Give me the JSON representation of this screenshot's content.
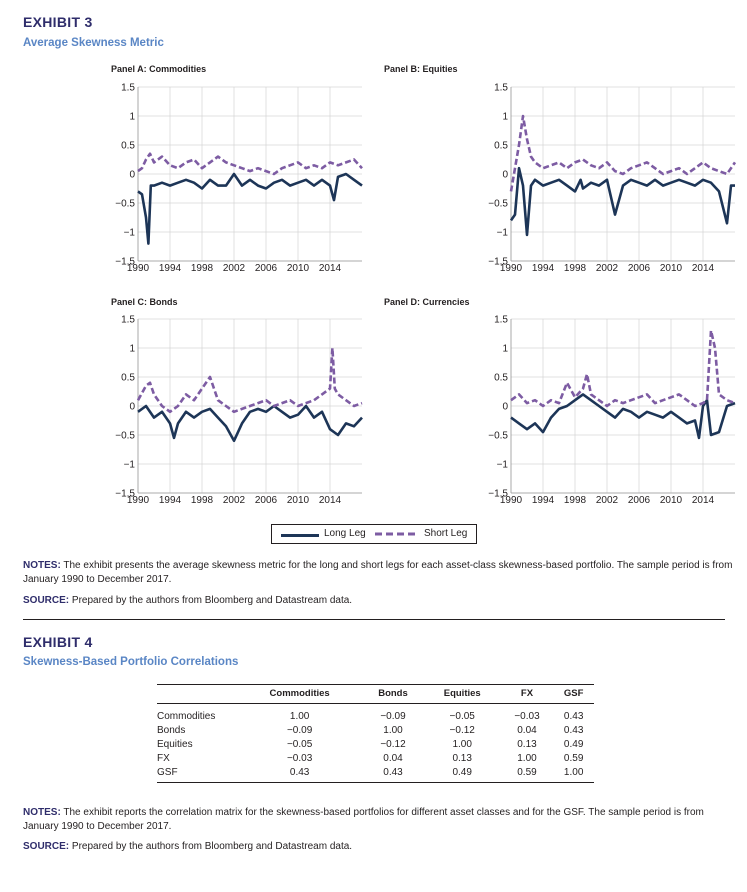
{
  "exhibit3": {
    "label": "EXHIBIT 3",
    "title": "Average Skewness Metric",
    "colors": {
      "long_leg": "#1d3557",
      "short_leg": "#7d5ca3"
    },
    "legend": {
      "long": "Long Leg",
      "short": "Short Leg"
    },
    "notes_label": "NOTES:",
    "notes": "The exhibit presents the average skewness metric for the long and short legs for each asset-class skewness-based portfolio. The sample period is from January 1990 to December 2017.",
    "source_label": "SOURCE:",
    "source": "Prepared by the authors from Bloomberg and Datastream data."
  },
  "chart_data": [
    {
      "type": "line",
      "title": "Panel A: Commodities",
      "xlim": [
        1990,
        2018
      ],
      "ylim": [
        -1.5,
        1.5
      ],
      "yticks": [
        "1.5",
        "1",
        "0.5",
        "0",
        "−0.5",
        "−1",
        "−1.5"
      ],
      "xticks": [
        "1990",
        "1994",
        "1998",
        "2002",
        "2006",
        "2010",
        "2014"
      ],
      "grid": true,
      "series": [
        {
          "name": "Long Leg",
          "x": [
            1990,
            1990.5,
            1991,
            1991.3,
            1991.6,
            1992,
            1993,
            1994,
            1995,
            1996,
            1997,
            1998,
            1999,
            2000,
            2001,
            2002,
            2003,
            2004,
            2005,
            2006,
            2007,
            2008,
            2009,
            2010,
            2011,
            2012,
            2013,
            2014,
            2014.5,
            2015,
            2016,
            2017,
            2018
          ],
          "y": [
            -0.3,
            -0.35,
            -0.75,
            -1.2,
            -0.2,
            -0.2,
            -0.15,
            -0.2,
            -0.15,
            -0.1,
            -0.15,
            -0.25,
            -0.1,
            -0.2,
            -0.2,
            0.0,
            -0.2,
            -0.1,
            -0.2,
            -0.25,
            -0.15,
            -0.1,
            -0.2,
            -0.15,
            -0.1,
            -0.2,
            -0.1,
            -0.2,
            -0.45,
            -0.05,
            0.0,
            -0.1,
            -0.2
          ]
        },
        {
          "name": "Short Leg",
          "x": [
            1990,
            1990.5,
            1991,
            1991.5,
            1992,
            1993,
            1994,
            1995,
            1996,
            1997,
            1998,
            1999,
            2000,
            2001,
            2002,
            2003,
            2004,
            2005,
            2006,
            2007,
            2008,
            2009,
            2010,
            2011,
            2012,
            2013,
            2014,
            2015,
            2016,
            2017,
            2018
          ],
          "y": [
            0.05,
            0.1,
            0.25,
            0.35,
            0.2,
            0.3,
            0.15,
            0.1,
            0.2,
            0.25,
            0.1,
            0.2,
            0.3,
            0.2,
            0.15,
            0.1,
            0.05,
            0.1,
            0.05,
            0.0,
            0.1,
            0.15,
            0.2,
            0.1,
            0.15,
            0.1,
            0.2,
            0.15,
            0.2,
            0.25,
            0.1
          ]
        }
      ]
    },
    {
      "type": "line",
      "title": "Panel B: Equities",
      "xlim": [
        1990,
        2018
      ],
      "ylim": [
        -1.5,
        1.5
      ],
      "yticks": [
        "1.5",
        "1",
        "0.5",
        "0",
        "−0.5",
        "−1",
        "−1.5"
      ],
      "xticks": [
        "1990",
        "1994",
        "1998",
        "2002",
        "2006",
        "2010",
        "2014"
      ],
      "grid": true,
      "series": [
        {
          "name": "Long Leg",
          "x": [
            1990,
            1990.5,
            1991,
            1991.5,
            1992,
            1992.5,
            1993,
            1994,
            1995,
            1996,
            1997,
            1998,
            1998.7,
            1999,
            2000,
            2001,
            2002,
            2003,
            2004,
            2005,
            2006,
            2007,
            2008,
            2009,
            2010,
            2011,
            2012,
            2013,
            2014,
            2015,
            2016,
            2017,
            2017.5,
            2018
          ],
          "y": [
            -0.8,
            -0.7,
            0.1,
            -0.2,
            -1.05,
            -0.2,
            -0.1,
            -0.2,
            -0.15,
            -0.1,
            -0.2,
            -0.3,
            -0.1,
            -0.25,
            -0.15,
            -0.2,
            -0.1,
            -0.7,
            -0.2,
            -0.1,
            -0.15,
            -0.2,
            -0.1,
            -0.2,
            -0.15,
            -0.1,
            -0.15,
            -0.2,
            -0.1,
            -0.15,
            -0.3,
            -0.85,
            -0.2,
            -0.2
          ]
        },
        {
          "name": "Short Leg",
          "x": [
            1990,
            1990.5,
            1991,
            1991.5,
            1992,
            1992.5,
            1993,
            1994,
            1995,
            1996,
            1997,
            1998,
            1999,
            2000,
            2001,
            2002,
            2003,
            2004,
            2005,
            2006,
            2007,
            2008,
            2009,
            2010,
            2011,
            2012,
            2013,
            2014,
            2015,
            2016,
            2017,
            2018
          ],
          "y": [
            -0.3,
            0.1,
            0.5,
            1.0,
            0.6,
            0.3,
            0.2,
            0.1,
            0.15,
            0.2,
            0.1,
            0.2,
            0.25,
            0.15,
            0.1,
            0.2,
            0.05,
            0.0,
            0.1,
            0.15,
            0.2,
            0.1,
            0.0,
            0.05,
            0.1,
            0.0,
            0.1,
            0.2,
            0.1,
            0.05,
            0.0,
            0.2
          ]
        }
      ]
    },
    {
      "type": "line",
      "title": "Panel C: Bonds",
      "xlim": [
        1990,
        2018
      ],
      "ylim": [
        -1.5,
        1.5
      ],
      "yticks": [
        "1.5",
        "1",
        "0.5",
        "0",
        "−0.5",
        "−1",
        "−1.5"
      ],
      "xticks": [
        "1990",
        "1994",
        "1998",
        "2002",
        "2006",
        "2010",
        "2014"
      ],
      "grid": true,
      "series": [
        {
          "name": "Long Leg",
          "x": [
            1990,
            1991,
            1992,
            1993,
            1994,
            1994.5,
            1995,
            1996,
            1997,
            1998,
            1999,
            2000,
            2001,
            2002,
            2003,
            2004,
            2005,
            2006,
            2007,
            2008,
            2009,
            2010,
            2011,
            2012,
            2013,
            2014,
            2015,
            2016,
            2017,
            2018
          ],
          "y": [
            -0.1,
            0.0,
            -0.2,
            -0.1,
            -0.3,
            -0.55,
            -0.3,
            -0.1,
            -0.2,
            -0.1,
            -0.05,
            -0.2,
            -0.35,
            -0.6,
            -0.3,
            -0.1,
            -0.05,
            -0.1,
            0.0,
            -0.1,
            -0.2,
            -0.15,
            0.0,
            -0.2,
            -0.1,
            -0.4,
            -0.5,
            -0.3,
            -0.35,
            -0.2
          ]
        },
        {
          "name": "Short Leg",
          "x": [
            1990,
            1991,
            1991.5,
            1992,
            1993,
            1994,
            1995,
            1996,
            1997,
            1998,
            1999,
            2000,
            2001,
            2002,
            2003,
            2004,
            2005,
            2006,
            2007,
            2008,
            2009,
            2010,
            2011,
            2012,
            2013,
            2014,
            2014.3,
            2014.6,
            2015,
            2016,
            2017,
            2018
          ],
          "y": [
            0.1,
            0.35,
            0.4,
            0.2,
            0.0,
            -0.1,
            0.0,
            0.2,
            0.1,
            0.3,
            0.5,
            0.1,
            0.0,
            -0.1,
            -0.05,
            0.0,
            0.05,
            0.1,
            0.0,
            0.05,
            0.1,
            0.0,
            0.05,
            0.1,
            0.2,
            0.3,
            1.0,
            0.3,
            0.2,
            0.1,
            0.0,
            0.05
          ]
        }
      ]
    },
    {
      "type": "line",
      "title": "Panel D: Currencies",
      "xlim": [
        1990,
        2018
      ],
      "ylim": [
        -1.5,
        1.5
      ],
      "yticks": [
        "1.5",
        "1",
        "0.5",
        "0",
        "−0.5",
        "−1",
        "−1.5"
      ],
      "xticks": [
        "1990",
        "1994",
        "1998",
        "2002",
        "2006",
        "2010",
        "2014"
      ],
      "grid": true,
      "series": [
        {
          "name": "Long Leg",
          "x": [
            1990,
            1991,
            1992,
            1993,
            1994,
            1995,
            1996,
            1997,
            1998,
            1999,
            2000,
            2001,
            2002,
            2003,
            2004,
            2005,
            2006,
            2007,
            2008,
            2009,
            2010,
            2011,
            2012,
            2013,
            2013.5,
            2014,
            2014.5,
            2015,
            2016,
            2017,
            2018
          ],
          "y": [
            -0.2,
            -0.3,
            -0.4,
            -0.3,
            -0.45,
            -0.2,
            -0.05,
            0.0,
            0.1,
            0.2,
            0.1,
            0.0,
            -0.1,
            -0.2,
            -0.05,
            -0.1,
            -0.2,
            -0.1,
            -0.15,
            -0.2,
            -0.1,
            -0.2,
            -0.3,
            -0.25,
            -0.55,
            0.0,
            0.1,
            -0.5,
            -0.45,
            0.0,
            0.05
          ]
        },
        {
          "name": "Short Leg",
          "x": [
            1990,
            1991,
            1992,
            1993,
            1994,
            1995,
            1996,
            1997,
            1998,
            1999,
            1999.5,
            2000,
            2001,
            2002,
            2003,
            2004,
            2005,
            2006,
            2007,
            2008,
            2009,
            2010,
            2011,
            2012,
            2013,
            2014,
            2014.5,
            2015,
            2015.5,
            2016,
            2017,
            2018
          ],
          "y": [
            0.1,
            0.2,
            0.05,
            0.1,
            0.0,
            0.1,
            0.05,
            0.4,
            0.15,
            0.3,
            0.55,
            0.2,
            0.1,
            0.0,
            0.1,
            0.05,
            0.1,
            0.15,
            0.2,
            0.05,
            0.1,
            0.15,
            0.2,
            0.1,
            0.0,
            0.05,
            0.1,
            1.3,
            1.0,
            0.2,
            0.1,
            0.05
          ]
        }
      ]
    }
  ],
  "exhibit4": {
    "label": "EXHIBIT 4",
    "title": "Skewness-Based Portfolio Correlations",
    "columns": [
      "Commodities",
      "Bonds",
      "Equities",
      "FX",
      "GSF"
    ],
    "rows": [
      {
        "label": "Commodities",
        "values": [
          "1.00",
          "−0.09",
          "−0.05",
          "−0.03",
          "0.43"
        ]
      },
      {
        "label": "Bonds",
        "values": [
          "−0.09",
          "1.00",
          "−0.12",
          "0.04",
          "0.43"
        ]
      },
      {
        "label": "Equities",
        "values": [
          "−0.05",
          "−0.12",
          "1.00",
          "0.13",
          "0.49"
        ]
      },
      {
        "label": "FX",
        "values": [
          "−0.03",
          "0.04",
          "0.13",
          "1.00",
          "0.59"
        ]
      },
      {
        "label": "GSF",
        "values": [
          "0.43",
          "0.43",
          "0.49",
          "0.59",
          "1.00"
        ]
      }
    ],
    "notes_label": "NOTES:",
    "notes": "The exhibit reports the correlation matrix for the skewness-based portfolios for different asset classes and for the GSF. The sample period is from January 1990 to December 2017.",
    "source_label": "SOURCE:",
    "source": "Prepared by the authors from Bloomberg and Datastream data."
  }
}
